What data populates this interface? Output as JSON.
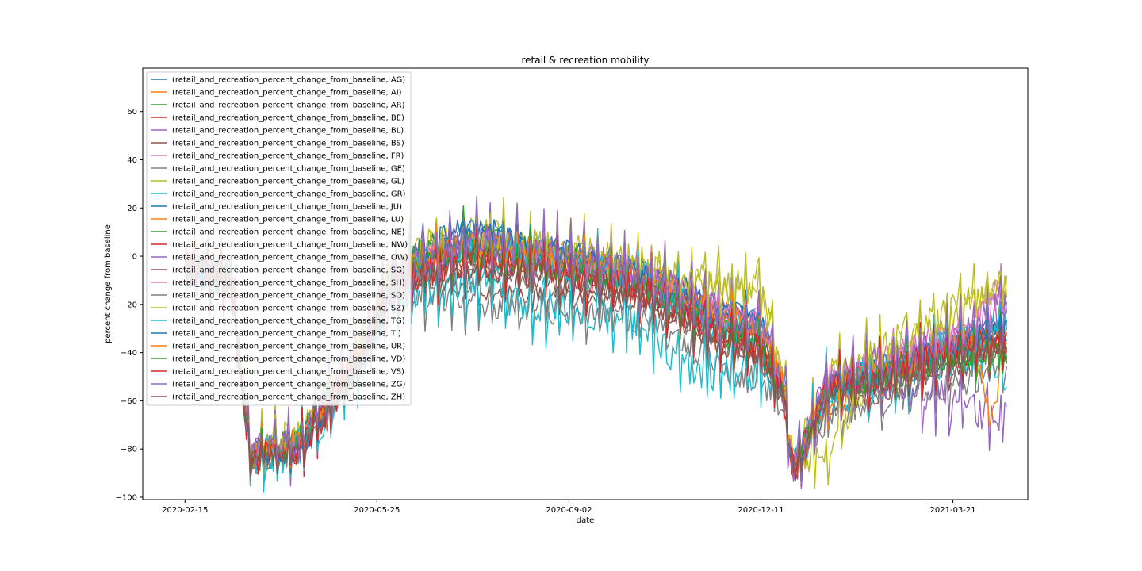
{
  "chart_data": {
    "type": "line",
    "title": "retail & recreation mobility",
    "xlabel": "date",
    "ylabel": "percent change from baseline",
    "x_range": [
      "2020-01-24",
      "2021-04-29"
    ],
    "ylim": [
      -101,
      78
    ],
    "x_ticks": [
      "2020-02-15",
      "2020-05-25",
      "2020-09-02",
      "2020-12-11",
      "2021-03-21"
    ],
    "y_ticks": [
      -100,
      -80,
      -60,
      -40,
      -20,
      0,
      20,
      40,
      60
    ],
    "grid": false,
    "legend_position": "top-left",
    "key_dates": [
      "2020-02-15",
      "2020-03-10",
      "2020-03-20",
      "2020-04-15",
      "2020-04-30",
      "2020-05-15",
      "2020-06-01",
      "2020-06-20",
      "2020-07-15",
      "2020-08-15",
      "2020-09-10",
      "2020-10-10",
      "2020-10-31",
      "2020-11-20",
      "2020-12-10",
      "2020-12-22",
      "2020-12-28",
      "2021-01-15",
      "2021-02-01",
      "2021-02-20",
      "2021-03-10",
      "2021-03-31",
      "2021-04-10",
      "2021-04-18"
    ],
    "series": [
      {
        "name": "(retail_and_recreation_percent_change_from_baseline, AG)",
        "color": "#1f77b4",
        "values": [
          -5,
          -10,
          -80,
          -75,
          -58,
          -40,
          -8,
          5,
          12,
          5,
          0,
          -5,
          -12,
          -20,
          -25,
          -52,
          -88,
          -52,
          -48,
          -42,
          -36,
          -31,
          -30,
          -32
        ]
      },
      {
        "name": "(retail_and_recreation_percent_change_from_baseline, AI)",
        "color": "#ff7f0e",
        "values": [
          -3,
          -8,
          -86,
          -80,
          -62,
          -44,
          -10,
          0,
          6,
          2,
          -2,
          -6,
          -14,
          -22,
          -28,
          -50,
          -87,
          -55,
          -52,
          -46,
          -40,
          -35,
          -30,
          -35
        ]
      },
      {
        "name": "(retail_and_recreation_percent_change_from_baseline, AR)",
        "color": "#2ca02c",
        "values": [
          -2,
          -9,
          -84,
          -79,
          -60,
          -42,
          -9,
          2,
          8,
          3,
          -1,
          -8,
          -20,
          -28,
          -32,
          -55,
          -88,
          -54,
          -53,
          -49,
          -44,
          -38,
          -34,
          -30
        ]
      },
      {
        "name": "(retail_and_recreation_percent_change_from_baseline, BE)",
        "color": "#d62728",
        "values": [
          -6,
          -12,
          -85,
          -80,
          -63,
          -46,
          -14,
          -4,
          0,
          -3,
          -6,
          -12,
          -22,
          -30,
          -35,
          -56,
          -90,
          -55,
          -50,
          -47,
          -42,
          -36,
          -33,
          -27
        ]
      },
      {
        "name": "(retail_and_recreation_percent_change_from_baseline, BL)",
        "color": "#9467bd",
        "values": [
          -4,
          -10,
          -83,
          -78,
          -60,
          -43,
          -12,
          -2,
          2,
          -1,
          -5,
          -10,
          -18,
          -26,
          -30,
          -54,
          -89,
          -53,
          -49,
          -45,
          -40,
          -34,
          -28,
          -18
        ]
      },
      {
        "name": "(retail_and_recreation_percent_change_from_baseline, BS)",
        "color": "#8c564b",
        "values": [
          -8,
          -14,
          -86,
          -82,
          -65,
          -48,
          -18,
          -12,
          -14,
          -16,
          -18,
          -20,
          -26,
          -36,
          -42,
          -60,
          -91,
          -62,
          -60,
          -56,
          -50,
          -46,
          -42,
          -40
        ]
      },
      {
        "name": "(retail_and_recreation_percent_change_from_baseline, FR)",
        "color": "#e377c2",
        "values": [
          -3,
          -9,
          -82,
          -77,
          -59,
          -41,
          -8,
          1,
          4,
          2,
          -3,
          -8,
          -16,
          -24,
          -28,
          -50,
          -87,
          -50,
          -47,
          -43,
          -37,
          -30,
          -15,
          -10
        ]
      },
      {
        "name": "(retail_and_recreation_percent_change_from_baseline, GE)",
        "color": "#7f7f7f",
        "values": [
          -7,
          -13,
          -85,
          -82,
          -66,
          -50,
          -22,
          -18,
          -20,
          -22,
          -24,
          -26,
          -34,
          -46,
          -52,
          -62,
          -90,
          -66,
          -64,
          -60,
          -56,
          -52,
          -48,
          -45
        ]
      },
      {
        "name": "(retail_and_recreation_percent_change_from_baseline, GL)",
        "color": "#bcbd22",
        "values": [
          0,
          -6,
          -80,
          -74,
          -56,
          -38,
          -6,
          4,
          10,
          6,
          2,
          -2,
          -8,
          -12,
          -10,
          -45,
          -86,
          -80,
          -56,
          -38,
          -30,
          -20,
          -14,
          -12
        ]
      },
      {
        "name": "(retail_and_recreation_percent_change_from_baseline, GR)",
        "color": "#17becf",
        "values": [
          -6,
          -12,
          -84,
          -81,
          -64,
          -48,
          -20,
          -14,
          -12,
          -20,
          -22,
          -28,
          -44,
          -50,
          -48,
          -58,
          -88,
          -58,
          -55,
          -50,
          -44,
          -40,
          -45,
          -48
        ]
      },
      {
        "name": "(retail_and_recreation_percent_change_from_baseline, JU)",
        "color": "#1f77b4",
        "values": [
          -2,
          -8,
          -82,
          -76,
          -58,
          -40,
          -6,
          6,
          14,
          6,
          2,
          -4,
          -12,
          -20,
          -24,
          -52,
          -86,
          -52,
          -48,
          -44,
          -38,
          -32,
          -28,
          -30
        ]
      },
      {
        "name": "(retail_and_recreation_percent_change_from_baseline, LU)",
        "color": "#ff7f0e",
        "values": [
          -4,
          -10,
          -83,
          -78,
          -60,
          -44,
          -10,
          0,
          4,
          1,
          -4,
          -8,
          -18,
          -26,
          -30,
          -54,
          -88,
          -62,
          -54,
          -46,
          -40,
          -36,
          -34,
          -36
        ]
      },
      {
        "name": "(retail_and_recreation_percent_change_from_baseline, NE)",
        "color": "#2ca02c",
        "values": [
          -3,
          -9,
          -81,
          -76,
          -58,
          -42,
          -8,
          2,
          6,
          2,
          -2,
          -10,
          -20,
          -30,
          -34,
          -54,
          -87,
          -54,
          -52,
          -48,
          -44,
          -40,
          -38,
          -40
        ]
      },
      {
        "name": "(retail_and_recreation_percent_change_from_baseline, NW)",
        "color": "#d62728",
        "values": [
          -5,
          -11,
          -84,
          -79,
          -62,
          -45,
          -12,
          -4,
          -2,
          -6,
          -10,
          -14,
          -24,
          -34,
          -38,
          -56,
          -89,
          -56,
          -52,
          -48,
          -42,
          -38,
          -40,
          -42
        ]
      },
      {
        "name": "(retail_and_recreation_percent_change_from_baseline, OW)",
        "color": "#9467bd",
        "values": [
          -3,
          -9,
          -82,
          -77,
          -59,
          -42,
          -9,
          1,
          5,
          2,
          -2,
          -8,
          -16,
          -24,
          -28,
          -52,
          -88,
          -52,
          -50,
          -52,
          -58,
          -64,
          -67,
          -67
        ]
      },
      {
        "name": "(retail_and_recreation_percent_change_from_baseline, SG)",
        "color": "#8c564b",
        "values": [
          -4,
          -10,
          -83,
          -79,
          -61,
          -44,
          -10,
          -2,
          2,
          -2,
          -6,
          -12,
          -22,
          -32,
          -36,
          -56,
          -90,
          -56,
          -54,
          -50,
          -46,
          -40,
          -38,
          -37
        ]
      },
      {
        "name": "(retail_and_recreation_percent_change_from_baseline, SH)",
        "color": "#e377c2",
        "values": [
          -3,
          -9,
          -82,
          -77,
          -58,
          -41,
          -8,
          2,
          6,
          2,
          -2,
          -6,
          -14,
          -22,
          -26,
          -50,
          -87,
          -50,
          -46,
          -40,
          -34,
          -28,
          -20,
          -22
        ]
      },
      {
        "name": "(retail_and_recreation_percent_change_from_baseline, SO)",
        "color": "#7f7f7f",
        "values": [
          -5,
          -11,
          -84,
          -80,
          -62,
          -46,
          -14,
          -6,
          -4,
          -8,
          -12,
          -16,
          -26,
          -36,
          -40,
          -58,
          -89,
          -58,
          -54,
          -50,
          -46,
          -42,
          -40,
          -41
        ]
      },
      {
        "name": "(retail_and_recreation_percent_change_from_baseline, SZ)",
        "color": "#bcbd22",
        "values": [
          -2,
          -8,
          -81,
          -75,
          -57,
          -40,
          -6,
          4,
          8,
          4,
          0,
          -4,
          -10,
          -14,
          -14,
          -48,
          -86,
          -50,
          -44,
          -34,
          -26,
          -18,
          -14,
          -12
        ]
      },
      {
        "name": "(retail_and_recreation_percent_change_from_baseline, TG)",
        "color": "#17becf",
        "values": [
          -4,
          -10,
          -83,
          -78,
          -60,
          -44,
          -12,
          -2,
          2,
          -2,
          -6,
          -10,
          -20,
          -30,
          -34,
          -54,
          -88,
          -54,
          -50,
          -46,
          -40,
          -36,
          -32,
          -28
        ]
      },
      {
        "name": "(retail_and_recreation_percent_change_from_baseline, TI)",
        "color": "#1f77b4",
        "values": [
          -6,
          -12,
          -86,
          -82,
          -64,
          -46,
          -12,
          0,
          10,
          4,
          0,
          -6,
          -16,
          -26,
          -30,
          -54,
          -90,
          -55,
          -50,
          -46,
          -40,
          -34,
          -32,
          -29
        ]
      },
      {
        "name": "(retail_and_recreation_percent_change_from_baseline, UR)",
        "color": "#ff7f0e",
        "values": [
          -3,
          -9,
          -82,
          -76,
          -58,
          -41,
          -8,
          2,
          6,
          2,
          -2,
          -8,
          -16,
          -24,
          -28,
          -52,
          -87,
          -52,
          -50,
          -46,
          -40,
          -34,
          -70,
          -33
        ]
      },
      {
        "name": "(retail_and_recreation_percent_change_from_baseline, VD)",
        "color": "#2ca02c",
        "values": [
          -4,
          -10,
          -83,
          -78,
          -60,
          -44,
          -10,
          -2,
          2,
          -2,
          -6,
          -12,
          -22,
          -32,
          -36,
          -55,
          -88,
          -55,
          -52,
          -48,
          -44,
          -42,
          -42,
          -42
        ]
      },
      {
        "name": "(retail_and_recreation_percent_change_from_baseline, VS)",
        "color": "#d62728",
        "values": [
          -5,
          -11,
          -84,
          -80,
          -62,
          -46,
          -14,
          -6,
          -2,
          -6,
          -10,
          -14,
          -24,
          -34,
          -38,
          -56,
          -88,
          -56,
          -52,
          -48,
          -42,
          -38,
          -36,
          -36
        ]
      },
      {
        "name": "(retail_and_recreation_percent_change_from_baseline, ZG)",
        "color": "#9467bd",
        "values": [
          -3,
          -9,
          -82,
          -77,
          -59,
          -42,
          -8,
          2,
          6,
          2,
          -2,
          -8,
          -16,
          -24,
          -28,
          -52,
          -88,
          -52,
          -48,
          -42,
          -36,
          -30,
          -22,
          -18
        ]
      },
      {
        "name": "(retail_and_recreation_percent_change_from_baseline, ZH)",
        "color": "#8c564b",
        "values": [
          -6,
          -12,
          -85,
          -81,
          -64,
          -47,
          -16,
          -8,
          -6,
          -10,
          -14,
          -18,
          -28,
          -38,
          -42,
          -58,
          -90,
          -58,
          -54,
          -50,
          -46,
          -40,
          -38,
          -38
        ]
      }
    ]
  }
}
